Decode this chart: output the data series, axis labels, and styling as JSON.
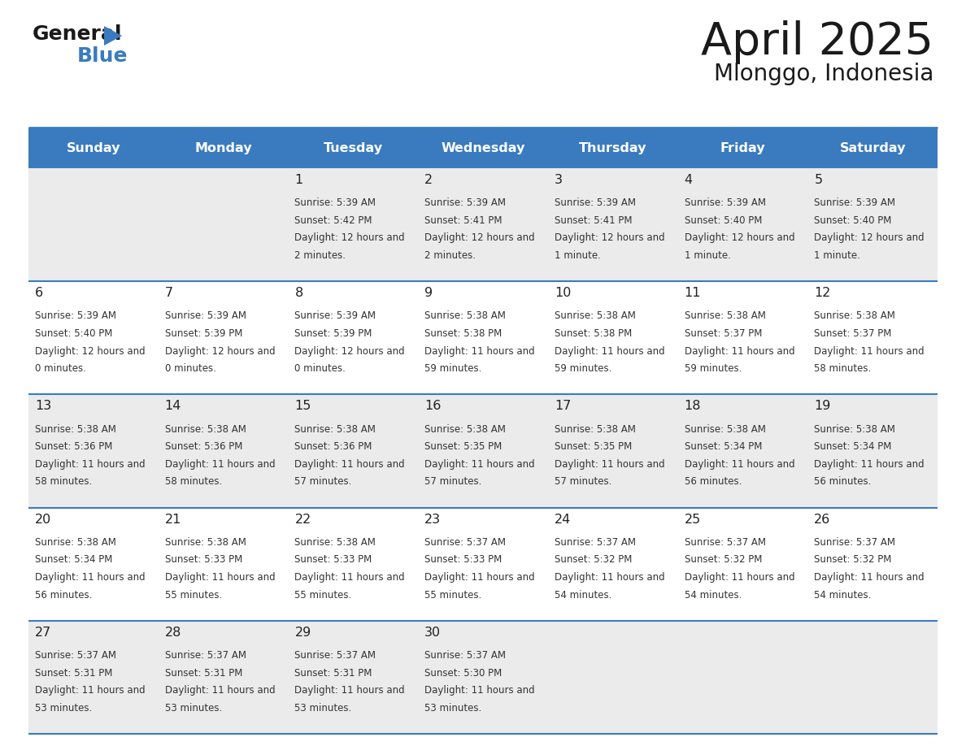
{
  "title": "April 2025",
  "subtitle": "Mlonggo, Indonesia",
  "header_color": "#3a7bbf",
  "header_text_color": "#ffffff",
  "row_colors": [
    "#ebebeb",
    "#ffffff",
    "#ebebeb",
    "#ffffff",
    "#ebebeb"
  ],
  "border_color": "#3a7bbf",
  "text_color": "#333333",
  "days_of_week": [
    "Sunday",
    "Monday",
    "Tuesday",
    "Wednesday",
    "Thursday",
    "Friday",
    "Saturday"
  ],
  "calendar_data": [
    [
      {
        "day": "",
        "sunrise": "",
        "sunset": "",
        "daylight": ""
      },
      {
        "day": "",
        "sunrise": "",
        "sunset": "",
        "daylight": ""
      },
      {
        "day": "1",
        "sunrise": "5:39 AM",
        "sunset": "5:42 PM",
        "daylight": "12 hours and 2 minutes."
      },
      {
        "day": "2",
        "sunrise": "5:39 AM",
        "sunset": "5:41 PM",
        "daylight": "12 hours and 2 minutes."
      },
      {
        "day": "3",
        "sunrise": "5:39 AM",
        "sunset": "5:41 PM",
        "daylight": "12 hours and 1 minute."
      },
      {
        "day": "4",
        "sunrise": "5:39 AM",
        "sunset": "5:40 PM",
        "daylight": "12 hours and 1 minute."
      },
      {
        "day": "5",
        "sunrise": "5:39 AM",
        "sunset": "5:40 PM",
        "daylight": "12 hours and 1 minute."
      }
    ],
    [
      {
        "day": "6",
        "sunrise": "5:39 AM",
        "sunset": "5:40 PM",
        "daylight": "12 hours and 0 minutes."
      },
      {
        "day": "7",
        "sunrise": "5:39 AM",
        "sunset": "5:39 PM",
        "daylight": "12 hours and 0 minutes."
      },
      {
        "day": "8",
        "sunrise": "5:39 AM",
        "sunset": "5:39 PM",
        "daylight": "12 hours and 0 minutes."
      },
      {
        "day": "9",
        "sunrise": "5:38 AM",
        "sunset": "5:38 PM",
        "daylight": "11 hours and 59 minutes."
      },
      {
        "day": "10",
        "sunrise": "5:38 AM",
        "sunset": "5:38 PM",
        "daylight": "11 hours and 59 minutes."
      },
      {
        "day": "11",
        "sunrise": "5:38 AM",
        "sunset": "5:37 PM",
        "daylight": "11 hours and 59 minutes."
      },
      {
        "day": "12",
        "sunrise": "5:38 AM",
        "sunset": "5:37 PM",
        "daylight": "11 hours and 58 minutes."
      }
    ],
    [
      {
        "day": "13",
        "sunrise": "5:38 AM",
        "sunset": "5:36 PM",
        "daylight": "11 hours and 58 minutes."
      },
      {
        "day": "14",
        "sunrise": "5:38 AM",
        "sunset": "5:36 PM",
        "daylight": "11 hours and 58 minutes."
      },
      {
        "day": "15",
        "sunrise": "5:38 AM",
        "sunset": "5:36 PM",
        "daylight": "11 hours and 57 minutes."
      },
      {
        "day": "16",
        "sunrise": "5:38 AM",
        "sunset": "5:35 PM",
        "daylight": "11 hours and 57 minutes."
      },
      {
        "day": "17",
        "sunrise": "5:38 AM",
        "sunset": "5:35 PM",
        "daylight": "11 hours and 57 minutes."
      },
      {
        "day": "18",
        "sunrise": "5:38 AM",
        "sunset": "5:34 PM",
        "daylight": "11 hours and 56 minutes."
      },
      {
        "day": "19",
        "sunrise": "5:38 AM",
        "sunset": "5:34 PM",
        "daylight": "11 hours and 56 minutes."
      }
    ],
    [
      {
        "day": "20",
        "sunrise": "5:38 AM",
        "sunset": "5:34 PM",
        "daylight": "11 hours and 56 minutes."
      },
      {
        "day": "21",
        "sunrise": "5:38 AM",
        "sunset": "5:33 PM",
        "daylight": "11 hours and 55 minutes."
      },
      {
        "day": "22",
        "sunrise": "5:38 AM",
        "sunset": "5:33 PM",
        "daylight": "11 hours and 55 minutes."
      },
      {
        "day": "23",
        "sunrise": "5:37 AM",
        "sunset": "5:33 PM",
        "daylight": "11 hours and 55 minutes."
      },
      {
        "day": "24",
        "sunrise": "5:37 AM",
        "sunset": "5:32 PM",
        "daylight": "11 hours and 54 minutes."
      },
      {
        "day": "25",
        "sunrise": "5:37 AM",
        "sunset": "5:32 PM",
        "daylight": "11 hours and 54 minutes."
      },
      {
        "day": "26",
        "sunrise": "5:37 AM",
        "sunset": "5:32 PM",
        "daylight": "11 hours and 54 minutes."
      }
    ],
    [
      {
        "day": "27",
        "sunrise": "5:37 AM",
        "sunset": "5:31 PM",
        "daylight": "11 hours and 53 minutes."
      },
      {
        "day": "28",
        "sunrise": "5:37 AM",
        "sunset": "5:31 PM",
        "daylight": "11 hours and 53 minutes."
      },
      {
        "day": "29",
        "sunrise": "5:37 AM",
        "sunset": "5:31 PM",
        "daylight": "11 hours and 53 minutes."
      },
      {
        "day": "30",
        "sunrise": "5:37 AM",
        "sunset": "5:30 PM",
        "daylight": "11 hours and 53 minutes."
      },
      {
        "day": "",
        "sunrise": "",
        "sunset": "",
        "daylight": ""
      },
      {
        "day": "",
        "sunrise": "",
        "sunset": "",
        "daylight": ""
      },
      {
        "day": "",
        "sunrise": "",
        "sunset": "",
        "daylight": ""
      }
    ]
  ]
}
